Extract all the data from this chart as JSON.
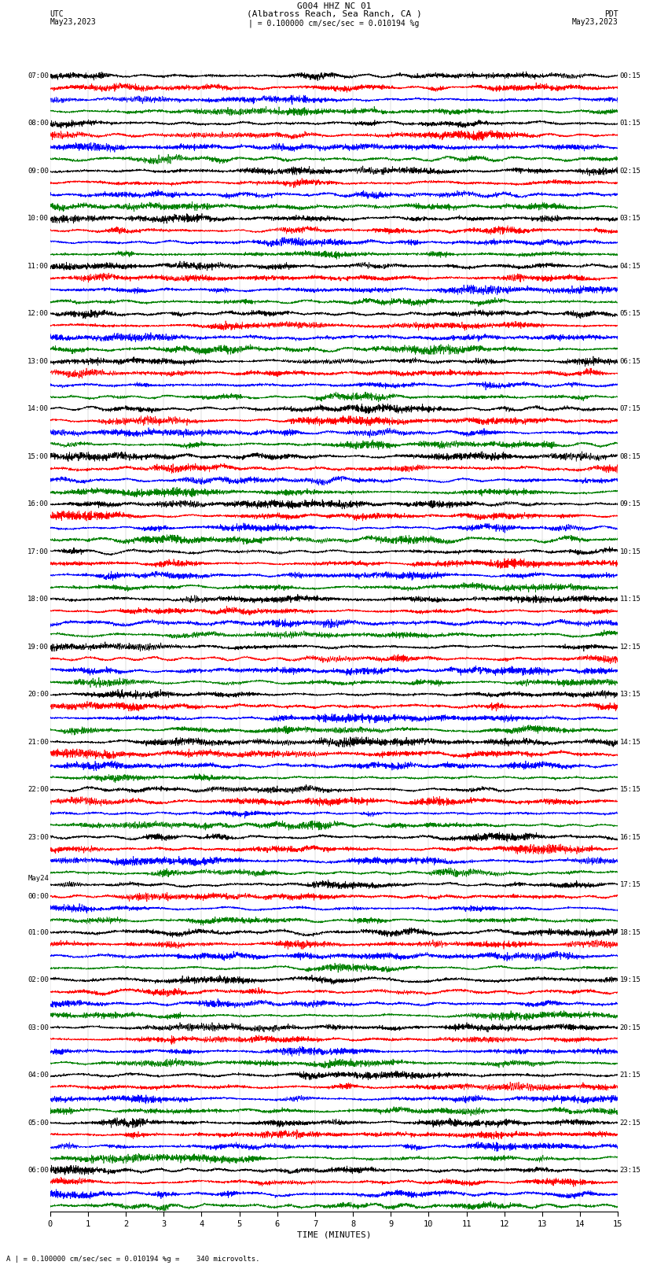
{
  "title_line1": "G004 HHZ NC 01",
  "title_line2": "(Albatross Reach, Sea Ranch, CA )",
  "scale_text": "| = 0.100000 cm/sec/sec = 0.010194 %g",
  "footer_text": "A | = 0.100000 cm/sec/sec = 0.010194 %g =    340 microvolts.",
  "utc_label": "UTC",
  "pdt_label": "PDT",
  "date_left": "May23,2023",
  "date_right": "May23,2023",
  "xlabel": "TIME (MINUTES)",
  "xmin": 0,
  "xmax": 15,
  "xticks": [
    0,
    1,
    2,
    3,
    4,
    5,
    6,
    7,
    8,
    9,
    10,
    11,
    12,
    13,
    14,
    15
  ],
  "colors": [
    "black",
    "red",
    "blue",
    "green"
  ],
  "left_times": [
    "07:00",
    "",
    "",
    "",
    "08:00",
    "",
    "",
    "",
    "09:00",
    "",
    "",
    "",
    "10:00",
    "",
    "",
    "",
    "11:00",
    "",
    "",
    "",
    "12:00",
    "",
    "",
    "",
    "13:00",
    "",
    "",
    "",
    "14:00",
    "",
    "",
    "",
    "15:00",
    "",
    "",
    "",
    "16:00",
    "",
    "",
    "",
    "17:00",
    "",
    "",
    "",
    "18:00",
    "",
    "",
    "",
    "19:00",
    "",
    "",
    "",
    "20:00",
    "",
    "",
    "",
    "21:00",
    "",
    "",
    "",
    "22:00",
    "",
    "",
    "",
    "23:00",
    "",
    "",
    "",
    "May24",
    "00:00",
    "",
    "",
    "01:00",
    "",
    "",
    "",
    "02:00",
    "",
    "",
    "",
    "03:00",
    "",
    "",
    "",
    "04:00",
    "",
    "",
    "",
    "05:00",
    "",
    "",
    "",
    "06:00",
    "",
    "",
    ""
  ],
  "right_times": [
    "00:15",
    "",
    "",
    "",
    "01:15",
    "",
    "",
    "",
    "02:15",
    "",
    "",
    "",
    "03:15",
    "",
    "",
    "",
    "04:15",
    "",
    "",
    "",
    "05:15",
    "",
    "",
    "",
    "06:15",
    "",
    "",
    "",
    "07:15",
    "",
    "",
    "",
    "08:15",
    "",
    "",
    "",
    "09:15",
    "",
    "",
    "",
    "10:15",
    "",
    "",
    "",
    "11:15",
    "",
    "",
    "",
    "12:15",
    "",
    "",
    "",
    "13:15",
    "",
    "",
    "",
    "14:15",
    "",
    "",
    "",
    "15:15",
    "",
    "",
    "",
    "16:15",
    "",
    "",
    "",
    "17:15",
    "",
    "",
    "",
    "18:15",
    "",
    "",
    "",
    "19:15",
    "",
    "",
    "",
    "20:15",
    "",
    "",
    "",
    "21:15",
    "",
    "",
    "",
    "22:15",
    "",
    "",
    "",
    "23:15",
    "",
    "",
    ""
  ],
  "num_rows": 96,
  "background_color": "white",
  "trace_linewidth": 0.5,
  "noise_seed": 42
}
